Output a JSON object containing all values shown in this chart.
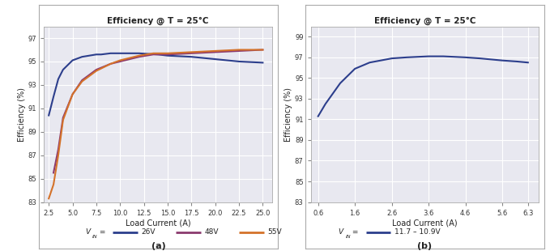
{
  "title": "Efficiency @ T = 25°C",
  "xlabel": "Load Current (A)",
  "ylabel": "Efficiency (%)",
  "ylim_a": [
    83,
    98
  ],
  "yticks_a": [
    83,
    85,
    87,
    89,
    91,
    93,
    95,
    97
  ],
  "xlim_a": [
    2.0,
    26.0
  ],
  "xticks_a": [
    2.5,
    5.0,
    7.5,
    10.0,
    12.5,
    15.0,
    17.5,
    20.0,
    22.5,
    25.0
  ],
  "ylim_b": [
    83,
    100
  ],
  "yticks_b": [
    83,
    85,
    87,
    89,
    91,
    93,
    95,
    97,
    99
  ],
  "xlim_b": [
    0.4,
    6.6
  ],
  "xticks_b": [
    0.6,
    1.6,
    2.6,
    3.6,
    4.6,
    5.6,
    6.3
  ],
  "label_a": "(a)",
  "label_b": "(b)",
  "series_a": [
    {
      "label": "26V",
      "color": "#2c3e8c",
      "x": [
        2.5,
        3.0,
        3.5,
        4.0,
        5.0,
        6.0,
        7.5,
        8.0,
        9.0,
        10.0,
        12.0,
        14.0,
        15.0,
        17.5,
        20.0,
        22.5,
        25.0
      ],
      "y": [
        90.4,
        92.0,
        93.5,
        94.3,
        95.1,
        95.4,
        95.6,
        95.6,
        95.7,
        95.7,
        95.7,
        95.6,
        95.5,
        95.4,
        95.2,
        95.0,
        94.9
      ]
    },
    {
      "label": "48V",
      "color": "#8b3a6e",
      "x": [
        3.0,
        3.5,
        4.0,
        5.0,
        6.0,
        7.5,
        9.0,
        10.0,
        12.0,
        13.5,
        15.0,
        17.5,
        20.0,
        22.5,
        25.0
      ],
      "y": [
        85.5,
        87.5,
        90.2,
        92.2,
        93.4,
        94.3,
        94.8,
        95.0,
        95.4,
        95.6,
        95.6,
        95.7,
        95.8,
        95.9,
        96.0
      ]
    },
    {
      "label": "55V",
      "color": "#d4722a",
      "x": [
        2.5,
        3.0,
        3.5,
        4.0,
        5.0,
        6.0,
        7.5,
        9.0,
        10.0,
        12.0,
        13.5,
        15.0,
        17.5,
        20.0,
        22.5,
        25.0
      ],
      "y": [
        83.3,
        84.5,
        87.0,
        90.0,
        92.2,
        93.3,
        94.2,
        94.8,
        95.1,
        95.5,
        95.7,
        95.7,
        95.8,
        95.9,
        96.0,
        96.0
      ]
    }
  ],
  "series_b": [
    {
      "label": "11.7 – 10.9V",
      "color": "#2c3e8c",
      "x": [
        0.6,
        0.8,
        1.0,
        1.2,
        1.6,
        2.0,
        2.6,
        3.0,
        3.6,
        4.0,
        4.6,
        5.0,
        5.6,
        6.0,
        6.3
      ],
      "y": [
        91.3,
        92.5,
        93.5,
        94.5,
        95.9,
        96.5,
        96.9,
        97.0,
        97.1,
        97.1,
        97.0,
        96.9,
        96.7,
        96.6,
        96.5
      ]
    }
  ],
  "fig_bg": "#ffffff",
  "plot_bg": "#e8e8f0",
  "grid_color": "#ffffff",
  "line_width": 1.5,
  "border_color": "#aaaaaa"
}
